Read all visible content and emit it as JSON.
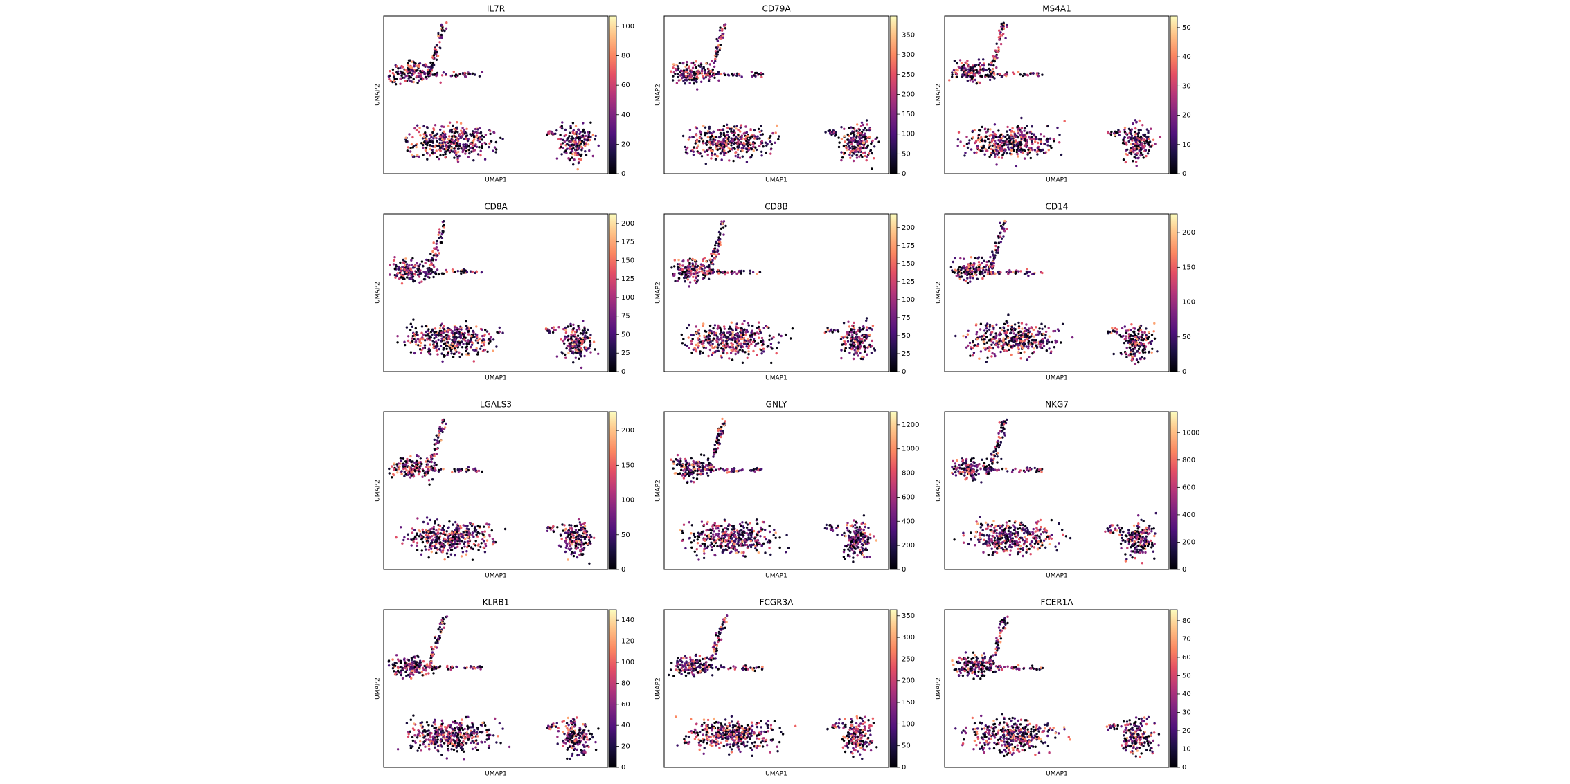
{
  "chart_data": [
    {
      "type": "scatter",
      "title": "IL7R",
      "xlabel": "UMAP1",
      "ylabel": "UMAP2",
      "clim": [
        0,
        107
      ],
      "cticks": [
        0,
        20,
        40,
        60,
        80,
        100
      ]
    },
    {
      "type": "scatter",
      "title": "CD79A",
      "xlabel": "UMAP1",
      "ylabel": "UMAP2",
      "clim": [
        0,
        398
      ],
      "cticks": [
        0,
        50,
        100,
        150,
        200,
        250,
        300,
        350
      ]
    },
    {
      "type": "scatter",
      "title": "MS4A1",
      "xlabel": "UMAP1",
      "ylabel": "UMAP2",
      "clim": [
        0,
        54
      ],
      "cticks": [
        0,
        10,
        20,
        30,
        40,
        50
      ]
    },
    {
      "type": "scatter",
      "title": "CD8A",
      "xlabel": "UMAP1",
      "ylabel": "UMAP2",
      "clim": [
        0,
        213
      ],
      "cticks": [
        0,
        25,
        50,
        75,
        100,
        125,
        150,
        175,
        200
      ]
    },
    {
      "type": "scatter",
      "title": "CD8B",
      "xlabel": "UMAP1",
      "ylabel": "UMAP2",
      "clim": [
        0,
        219
      ],
      "cticks": [
        0,
        25,
        50,
        75,
        100,
        125,
        150,
        175,
        200
      ]
    },
    {
      "type": "scatter",
      "title": "CD14",
      "xlabel": "UMAP1",
      "ylabel": "UMAP2",
      "clim": [
        0,
        227
      ],
      "cticks": [
        0,
        50,
        100,
        150,
        200
      ]
    },
    {
      "type": "scatter",
      "title": "LGALS3",
      "xlabel": "UMAP1",
      "ylabel": "UMAP2",
      "clim": [
        0,
        227
      ],
      "cticks": [
        0,
        50,
        100,
        150,
        200
      ]
    },
    {
      "type": "scatter",
      "title": "GNLY",
      "xlabel": "UMAP1",
      "ylabel": "UMAP2",
      "clim": [
        0,
        1308
      ],
      "cticks": [
        0,
        200,
        400,
        600,
        800,
        1000,
        1200
      ]
    },
    {
      "type": "scatter",
      "title": "NKG7",
      "xlabel": "UMAP1",
      "ylabel": "UMAP2",
      "clim": [
        0,
        1153
      ],
      "cticks": [
        0,
        200,
        400,
        600,
        800,
        1000
      ]
    },
    {
      "type": "scatter",
      "title": "KLRB1",
      "xlabel": "UMAP1",
      "ylabel": "UMAP2",
      "clim": [
        0,
        150
      ],
      "cticks": [
        0,
        20,
        40,
        60,
        80,
        100,
        120,
        140
      ]
    },
    {
      "type": "scatter",
      "title": "FCGR3A",
      "xlabel": "UMAP1",
      "ylabel": "UMAP2",
      "clim": [
        0,
        364
      ],
      "cticks": [
        0,
        50,
        100,
        150,
        200,
        250,
        300,
        350
      ]
    },
    {
      "type": "scatter",
      "title": "FCER1A",
      "xlabel": "UMAP1",
      "ylabel": "UMAP2",
      "clim": [
        0,
        86
      ],
      "cticks": [
        0,
        10,
        20,
        30,
        40,
        50,
        60,
        70,
        80
      ]
    }
  ]
}
